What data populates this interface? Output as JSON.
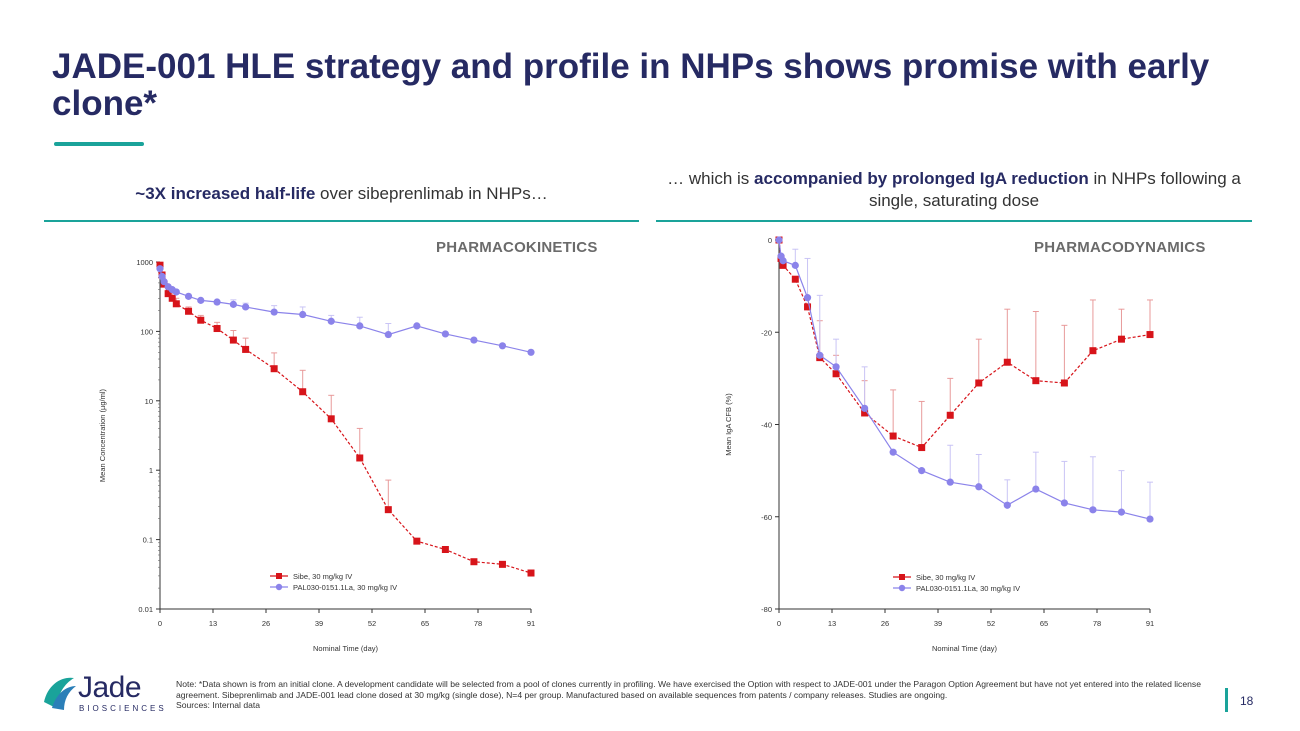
{
  "slide": {
    "title": "JADE-001 HLE strategy and profile in NHPs shows promise with early clone*",
    "left_subhead_bold": "~3X increased half-life",
    "left_subhead_rest": " over sibeprenlimab in NHPs…",
    "right_subhead_pre": "… which is ",
    "right_subhead_bold": "accompanied by prolonged IgA reduction",
    "right_subhead_post": " in NHPs following a single, saturating dose",
    "pk_label": "PHARMACOKINETICS",
    "pd_label": "PHARMACODYNAMICS",
    "footnote": "Note: *Data shown is from an initial clone. A development candidate will be selected from a pool of clones currently in profiling.  We have exercised the Option with respect to JADE-001 under the Paragon Option Agreement but have not yet entered into the related license agreement.  Sibeprenlimab and JADE-001 lead clone dosed at 30 mg/kg (single dose), N=4 per group. Manufactured based on available sequences from patents / company releases. Studies are ongoing.",
    "sources": "Sources: Internal data",
    "logo_text": "Jade",
    "logo_subtext": "BIOSCIENCES",
    "page_number": "18",
    "colors": {
      "navy": "#262a63",
      "teal": "#1aa39a",
      "sibe": "#d7141a",
      "pal": "#8b83ea",
      "sibe_err": "#e89a9a",
      "pal_err": "#c9c4f5"
    }
  },
  "chart_data": [
    {
      "type": "line",
      "title": "PHARMACOKINETICS",
      "xlabel": "Nominal Time (day)",
      "ylabel": "Mean Concentration (µg/ml)",
      "yscale": "log",
      "ylim": [
        0.01,
        1000
      ],
      "xlim": [
        0,
        91
      ],
      "xticks": [
        0,
        13,
        26,
        39,
        52,
        65,
        78,
        91
      ],
      "yticks": [
        0.01,
        0.1,
        1,
        10,
        100,
        1000
      ],
      "ytick_labels": [
        "0.01",
        "0.1",
        "1",
        "10",
        "100",
        "1000"
      ],
      "legend": "bottom-right",
      "series": [
        {
          "name": "Sibe, 30 mg/kg IV",
          "marker": "square",
          "x": [
            0,
            0.5,
            1,
            2,
            3,
            4,
            7,
            10,
            14,
            18,
            21,
            28,
            35,
            42,
            49,
            56,
            63,
            70,
            77,
            84,
            91
          ],
          "y": [
            900,
            650,
            480,
            350,
            300,
            250,
            195,
            145,
            110,
            75,
            55,
            29,
            13.5,
            5.5,
            1.5,
            0.27,
            0.095,
            0.072,
            0.048,
            0.044,
            0.033
          ],
          "err": [
            0,
            0,
            0,
            60,
            60,
            50,
            30,
            25,
            25,
            28,
            25,
            20,
            14,
            6.5,
            2.5,
            0.45,
            0,
            0,
            0,
            0,
            0
          ]
        },
        {
          "name": "PAL030-0151.1La, 30 mg/kg IV",
          "marker": "circle",
          "x": [
            0,
            0.5,
            1,
            2,
            3,
            4,
            7,
            10,
            14,
            18,
            21,
            28,
            35,
            42,
            49,
            56,
            63,
            70,
            77,
            84,
            91
          ],
          "y": [
            800,
            620,
            520,
            440,
            400,
            370,
            320,
            280,
            265,
            245,
            225,
            190,
            175,
            140,
            120,
            90,
            120,
            92,
            75,
            62,
            50
          ],
          "err": [
            0,
            0,
            0,
            0,
            0,
            0,
            0,
            0,
            0,
            40,
            30,
            45,
            50,
            30,
            40,
            40,
            0,
            0,
            0,
            0,
            0
          ]
        }
      ]
    },
    {
      "type": "line",
      "title": "PHARMACODYNAMICS",
      "xlabel": "Nominal Time (day)",
      "ylabel": "Mean IgA CFB (%)",
      "ylim": [
        -80,
        0
      ],
      "xlim": [
        0,
        91
      ],
      "xticks": [
        0,
        13,
        26,
        39,
        52,
        65,
        78,
        91
      ],
      "yticks": [
        0,
        -20,
        -40,
        -60,
        -80
      ],
      "ytick_labels": [
        "0",
        "-20",
        "-40",
        "-60",
        "-80"
      ],
      "legend": "bottom-right",
      "series": [
        {
          "name": "Sibe, 30 mg/kg IV",
          "marker": "square",
          "x": [
            0,
            0.5,
            1,
            4,
            7,
            10,
            14,
            21,
            28,
            35,
            42,
            49,
            56,
            63,
            70,
            77,
            84,
            91
          ],
          "y": [
            0,
            -4,
            -5.5,
            -8.5,
            -14.5,
            -25.5,
            -29,
            -37.5,
            -42.5,
            -45,
            -38,
            -31,
            -26.5,
            -30.5,
            -31,
            -24,
            -21.5,
            -20.5
          ],
          "err": [
            0,
            0,
            0,
            0,
            0,
            8,
            4,
            7,
            10,
            10,
            8,
            9.5,
            11.5,
            15,
            12.5,
            11,
            6.5,
            7.5
          ]
        },
        {
          "name": "PAL030-0151.1La, 30 mg/kg IV",
          "marker": "circle",
          "x": [
            0,
            0.5,
            1,
            4,
            7,
            10,
            14,
            21,
            28,
            35,
            42,
            49,
            56,
            63,
            70,
            77,
            84,
            91
          ],
          "y": [
            0,
            -3.5,
            -4.5,
            -5.5,
            -12.5,
            -25,
            -27.5,
            -36.5,
            -46,
            -50,
            -52.5,
            -53.5,
            -57.5,
            -54,
            -57,
            -58.5,
            -59,
            -60.5
          ],
          "err": [
            0,
            0,
            0,
            3.5,
            8.5,
            13,
            6,
            9,
            0,
            0,
            8,
            7,
            5.5,
            8,
            9,
            11.5,
            9,
            8
          ]
        }
      ]
    }
  ]
}
